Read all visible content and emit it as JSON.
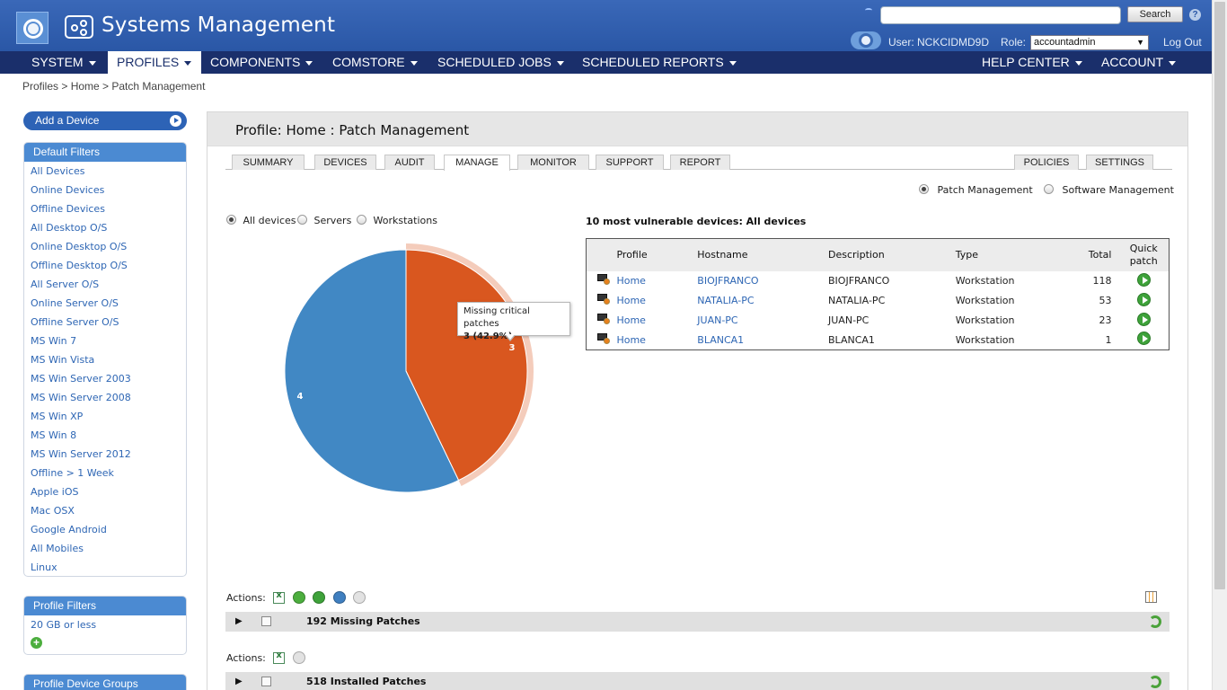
{
  "header": {
    "app_title": "Systems Management",
    "search_placeholder": "",
    "search_button": "Search",
    "help_icon": "?",
    "user_label": "User: NCKCIDMD9D",
    "role_label": "Role:",
    "role_value": "accountadmin",
    "logout": "Log Out"
  },
  "nav": {
    "items": [
      "SYSTEM",
      "PROFILES",
      "COMPONENTS",
      "COMSTORE",
      "SCHEDULED JOBS",
      "SCHEDULED REPORTS"
    ],
    "right_items": [
      "HELP CENTER",
      "ACCOUNT"
    ],
    "active": "PROFILES"
  },
  "breadcrumb": "Profiles > Home > Patch Management",
  "sidebar": {
    "add_device": "Add a Device",
    "default_filters": {
      "title": "Default Filters",
      "items": [
        "All Devices",
        "Online Devices",
        "Offline Devices",
        "All Desktop O/S",
        "Online Desktop O/S",
        "Offline Desktop O/S",
        "All Server O/S",
        "Online Server O/S",
        "Offline Server O/S",
        "MS Win 7",
        "MS Win Vista",
        "MS Win Server 2003",
        "MS Win Server 2008",
        "MS Win XP",
        "MS Win 8",
        "MS Win Server 2012",
        "Offline > 1 Week",
        "Apple iOS",
        "Mac OSX",
        "Google Android",
        "All Mobiles",
        "Linux"
      ]
    },
    "profile_filters": {
      "title": "Profile Filters",
      "items": [
        "20 GB or less"
      ]
    },
    "profile_device_groups": {
      "title": "Profile Device Groups"
    }
  },
  "main": {
    "title": "Profile: Home : Patch Management",
    "tabs": [
      "SUMMARY",
      "DEVICES",
      "AUDIT",
      "MANAGE",
      "MONITOR",
      "SUPPORT",
      "REPORT"
    ],
    "right_tabs": [
      "POLICIES",
      "SETTINGS"
    ],
    "active_tab": "MANAGE",
    "mode_options": [
      "Patch Management",
      "Software Management"
    ],
    "mode_selected": "Patch Management",
    "device_filter": [
      "All devices",
      "Servers",
      "Workstations"
    ],
    "device_filter_selected": "All devices"
  },
  "chart_data": {
    "type": "pie",
    "slices": [
      {
        "label": "Missing critical patches",
        "value": 3,
        "percent": 42.9,
        "color": "#d9571f",
        "highlighted": true
      },
      {
        "label": "",
        "value": 4,
        "percent": 57.1,
        "color": "#4188c4"
      }
    ],
    "data_labels": [
      "3",
      "4"
    ],
    "tooltip": {
      "title": "Missing critical patches",
      "value": "3 (42.9%)"
    }
  },
  "vulnerable": {
    "title": "10 most vulnerable devices: All devices",
    "columns": [
      "Profile",
      "Hostname",
      "Description",
      "Type",
      "Total",
      "Quick patch"
    ],
    "rows": [
      {
        "profile": "Home",
        "hostname": "BIOJFRANCO",
        "description": "BIOJFRANCO",
        "type": "Workstation",
        "total": "118"
      },
      {
        "profile": "Home",
        "hostname": "NATALIA-PC",
        "description": "NATALIA-PC",
        "type": "Workstation",
        "total": "53"
      },
      {
        "profile": "Home",
        "hostname": "JUAN-PC",
        "description": "JUAN-PC",
        "type": "Workstation",
        "total": "23"
      },
      {
        "profile": "Home",
        "hostname": "BLANCA1",
        "description": "BLANCA1",
        "type": "Workstation",
        "total": "1"
      }
    ]
  },
  "groups": {
    "actions_label": "Actions:",
    "missing": "192 Missing Patches",
    "installed": "518 Installed Patches"
  },
  "colors": {
    "header_blue": "#2f5daa",
    "nav_navy": "#1a2f6b",
    "link_blue": "#2e66b4",
    "pie_orange": "#d9571f",
    "pie_blue": "#4188c4"
  }
}
